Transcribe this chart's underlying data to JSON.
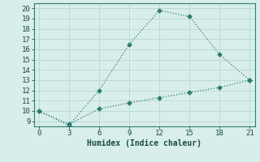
{
  "xlabel": "Humidex (Indice chaleur)",
  "line1_x": [
    0,
    3,
    6,
    9,
    12,
    15,
    18,
    21
  ],
  "line1_y": [
    10,
    8.6,
    12,
    16.5,
    19.8,
    19.2,
    15.5,
    13
  ],
  "line2_x": [
    0,
    3,
    6,
    9,
    12,
    15,
    18,
    21
  ],
  "line2_y": [
    10,
    8.7,
    10.2,
    10.8,
    11.3,
    11.8,
    12.3,
    13
  ],
  "line_color": "#2e7d6e",
  "bg_color": "#d8eeeb",
  "grid_color": "#c0ddd9",
  "xlim": [
    -0.5,
    21.5
  ],
  "ylim": [
    8.5,
    20.5
  ],
  "xticks": [
    0,
    3,
    6,
    9,
    12,
    15,
    18,
    21
  ],
  "yticks": [
    9,
    10,
    11,
    12,
    13,
    14,
    15,
    16,
    17,
    18,
    19,
    20
  ],
  "marker": "D",
  "markersize": 2.5,
  "linewidth": 0.9,
  "xlabel_fontsize": 7,
  "tick_fontsize": 6.5
}
